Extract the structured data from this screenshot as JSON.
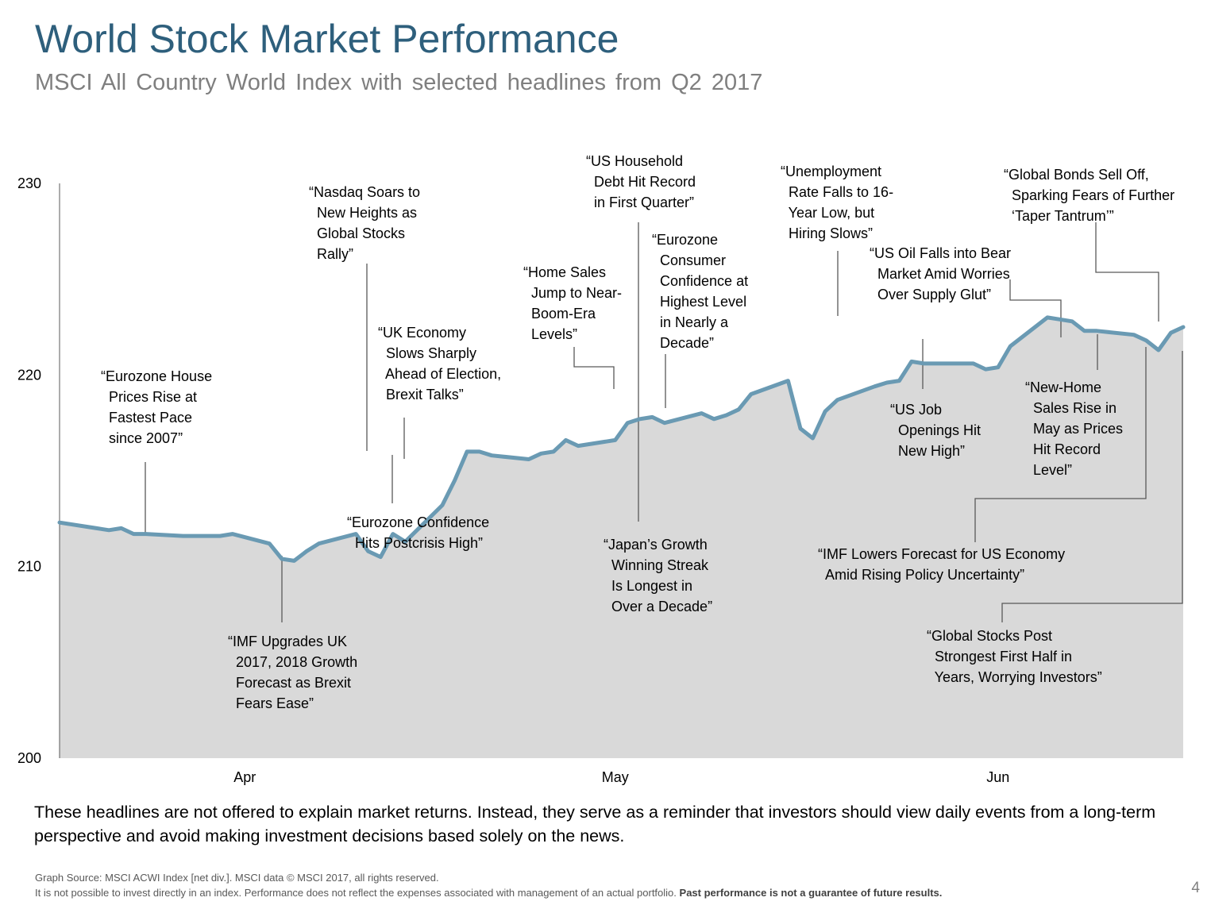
{
  "header": {
    "title": "World Stock Market Performance",
    "subtitle": "MSCI All Country World Index with selected headlines from Q2 2017"
  },
  "colors": {
    "title": "#2e5f7c",
    "line": "#6a9ab3",
    "area": "#d9d9d9",
    "leader": "#595959",
    "axis": "#595959"
  },
  "chart_data": {
    "type": "area",
    "ylim": [
      200,
      230
    ],
    "yticks": [
      "200",
      "210",
      "220",
      "230"
    ],
    "xlim": [
      "2017-03-31",
      "2017-06-30"
    ],
    "xticks": [
      {
        "label": "Apr",
        "date": "2017-04-15"
      },
      {
        "label": "May",
        "date": "2017-05-15"
      },
      {
        "label": "Jun",
        "date": "2017-06-15"
      }
    ],
    "grid": false,
    "series": [
      {
        "points": [
          [
            "2017-03-31",
            212.3
          ],
          [
            "2017-04-03",
            212.0
          ],
          [
            "2017-04-04",
            211.9
          ],
          [
            "2017-04-05",
            212.0
          ],
          [
            "2017-04-06",
            211.7
          ],
          [
            "2017-04-07",
            211.7
          ],
          [
            "2017-04-10",
            211.6
          ],
          [
            "2017-04-11",
            211.6
          ],
          [
            "2017-04-12",
            211.6
          ],
          [
            "2017-04-13",
            211.6
          ],
          [
            "2017-04-14",
            211.7
          ],
          [
            "2017-04-17",
            211.2
          ],
          [
            "2017-04-18",
            210.4
          ],
          [
            "2017-04-19",
            210.3
          ],
          [
            "2017-04-20",
            210.8
          ],
          [
            "2017-04-21",
            211.2
          ],
          [
            "2017-04-24",
            211.7
          ],
          [
            "2017-04-25",
            210.8
          ],
          [
            "2017-04-26",
            210.5
          ],
          [
            "2017-04-27",
            211.7
          ],
          [
            "2017-04-28",
            211.3
          ],
          [
            "2017-05-01",
            213.2
          ],
          [
            "2017-05-02",
            214.5
          ],
          [
            "2017-05-03",
            216.0
          ],
          [
            "2017-05-04",
            216.0
          ],
          [
            "2017-05-05",
            215.8
          ],
          [
            "2017-05-08",
            215.6
          ],
          [
            "2017-05-09",
            215.9
          ],
          [
            "2017-05-10",
            216.0
          ],
          [
            "2017-05-11",
            216.6
          ],
          [
            "2017-05-12",
            216.3
          ],
          [
            "2017-05-15",
            216.6
          ],
          [
            "2017-05-16",
            217.5
          ],
          [
            "2017-05-17",
            217.7
          ],
          [
            "2017-05-18",
            217.8
          ],
          [
            "2017-05-19",
            217.5
          ],
          [
            "2017-05-22",
            218.0
          ],
          [
            "2017-05-23",
            217.7
          ],
          [
            "2017-05-24",
            217.9
          ],
          [
            "2017-05-25",
            218.2
          ],
          [
            "2017-05-26",
            219.0
          ],
          [
            "2017-05-29",
            219.7
          ],
          [
            "2017-05-30",
            217.2
          ],
          [
            "2017-05-31",
            216.7
          ],
          [
            "2017-06-01",
            218.1
          ],
          [
            "2017-06-02",
            218.7
          ],
          [
            "2017-06-05",
            219.4
          ],
          [
            "2017-06-06",
            219.6
          ],
          [
            "2017-06-07",
            219.7
          ],
          [
            "2017-06-08",
            220.7
          ],
          [
            "2017-06-09",
            220.6
          ],
          [
            "2017-06-12",
            220.6
          ],
          [
            "2017-06-13",
            220.6
          ],
          [
            "2017-06-14",
            220.3
          ],
          [
            "2017-06-15",
            220.4
          ],
          [
            "2017-06-16",
            221.5
          ],
          [
            "2017-06-19",
            223.0
          ],
          [
            "2017-06-20",
            222.9
          ],
          [
            "2017-06-21",
            222.8
          ],
          [
            "2017-06-22",
            222.3
          ],
          [
            "2017-06-23",
            222.3
          ],
          [
            "2017-06-26",
            222.1
          ],
          [
            "2017-06-27",
            221.8
          ],
          [
            "2017-06-28",
            221.3
          ],
          [
            "2017-06-29",
            222.2
          ],
          [
            "2017-06-30",
            222.5
          ]
        ]
      }
    ],
    "annotations": [
      {
        "text": "“Eurozone House\n  Prices Rise at\n  Fastest Pace\n  since 2007”"
      },
      {
        "text": "“IMF Upgrades UK\n  2017, 2018 Growth\n  Forecast as Brexit\n  Fears Ease”"
      },
      {
        "text": "“Nasdaq Soars to\n  New Heights as\n  Global Stocks\n  Rally”"
      },
      {
        "text": "“UK Economy\n  Slows Sharply\n  Ahead of Election,\n  Brexit Talks”"
      },
      {
        "text": "“Eurozone Confidence\n  Hits Postcrisis High”"
      },
      {
        "text": "“Home Sales\n  Jump to Near-\n  Boom-Era\n  Levels”"
      },
      {
        "text": "“US Household\n  Debt Hit Record\n  in First Quarter”"
      },
      {
        "text": "“Japan’s Growth\n  Winning Streak\n  Is Longest in\n  Over a Decade”"
      },
      {
        "text": "“Eurozone\n  Consumer\n  Confidence at\n  Highest Level\n  in Nearly a\n  Decade”"
      },
      {
        "text": "“Unemployment\n  Rate Falls to 16-\n  Year Low, but\n  Hiring Slows”"
      },
      {
        "text": "“US Oil Falls into Bear\n  Market Amid Worries\n  Over Supply Glut”"
      },
      {
        "text": "“US Job\n  Openings Hit\n  New High”"
      },
      {
        "text": "“Global Bonds Sell Off,\n  Sparking Fears of Further\n  ‘Taper Tantrum’”"
      },
      {
        "text": "“New-Home\n  Sales Rise in\n  May as Prices\n  Hit Record\n  Level”"
      },
      {
        "text": "“IMF Lowers Forecast for US Economy\n  Amid Rising Policy Uncertainty”"
      },
      {
        "text": "“Global Stocks Post\n  Strongest First Half in\n  Years, Worrying Investors”"
      }
    ]
  },
  "footnote": "These headlines are not offered to explain market returns. Instead, they serve as a reminder that investors should view daily events from a long-term perspective and avoid making investment decisions based solely on the news.",
  "source": {
    "line1": "Graph Source: MSCI ACWI Index [net div.]. MSCI data © MSCI 2017, all rights reserved.",
    "line2": "It is not possible to invest directly in an index. Performance does not reflect the expenses associated with management of an actual portfolio.",
    "line2_bold": "Past performance is not a guarantee of future results."
  },
  "page_number": "4"
}
